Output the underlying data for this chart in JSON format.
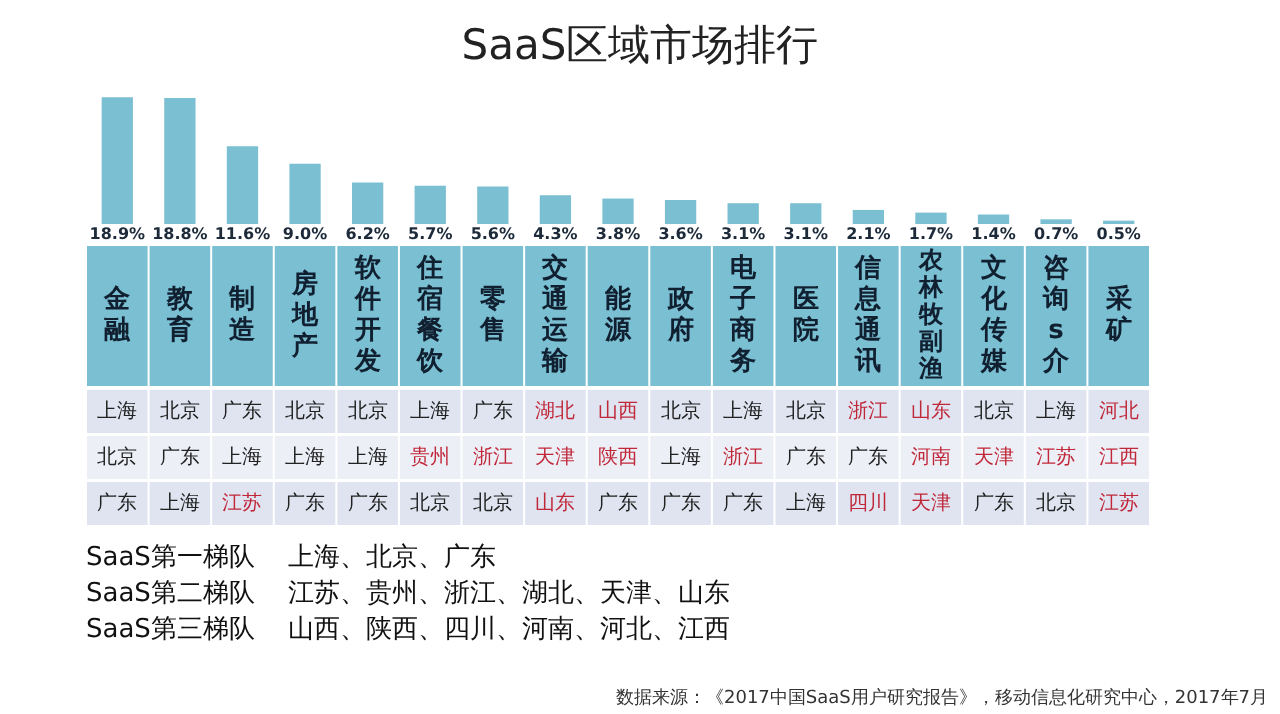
{
  "chart_data": {
    "type": "bar",
    "title": "SaaS区域市场排行",
    "categories": [
      "金融",
      "教育",
      "制造",
      "房地产",
      "软件开发",
      "住宿餐饮",
      "零售",
      "交通运输",
      "能源",
      "政府",
      "电子商务",
      "医院",
      "信息通讯",
      "农林牧副渔",
      "文化传媒",
      "咨询s介",
      "采矿"
    ],
    "values": [
      18.9,
      18.8,
      11.6,
      9.0,
      6.2,
      5.7,
      5.6,
      4.3,
      3.8,
      3.6,
      3.1,
      3.1,
      2.1,
      1.7,
      1.4,
      0.7,
      0.5
    ],
    "value_labels": [
      "18.9%",
      "18.8%",
      "11.6%",
      "9.0%",
      "6.2%",
      "5.7%",
      "5.6%",
      "4.3%",
      "3.8%",
      "3.6%",
      "3.1%",
      "3.1%",
      "2.1%",
      "1.7%",
      "1.4%",
      "0.7%",
      "0.5%"
    ],
    "color": "#7bbfd3",
    "annotations": [
      "上海",
      "北京",
      "广东",
      "北京",
      "北京",
      "上海",
      "广东",
      "湖北",
      "山西",
      "北京",
      "上海",
      "北京",
      "浙江",
      "山东",
      "北京",
      "上海",
      "河北",
      "北京",
      "广东",
      "上海",
      "上海",
      "上海",
      "贵州",
      "浙江",
      "天津",
      "陕西",
      "上海",
      "浙江",
      "广东",
      "广东",
      "河南",
      "天津",
      "江苏",
      "江西",
      "广东",
      "上海",
      "江苏",
      "广东",
      "广东",
      "北京",
      "北京",
      "山东",
      "广东",
      "广东",
      "广东",
      "上海",
      "四川",
      "天津",
      "广东",
      "北京",
      "江苏",
      "SaaS第一梯队    上海、北京、广东",
      "SaaS第二梯队    江苏、贵州、浙江、湖北、天津、山东",
      "SaaS第三梯队    山西、陕西、四川、河南、河北、江西",
      "数据来源：《2017中国SaaS用户研究报告》，移动信息化研究中心，2017年7月"
    ]
  }
}
